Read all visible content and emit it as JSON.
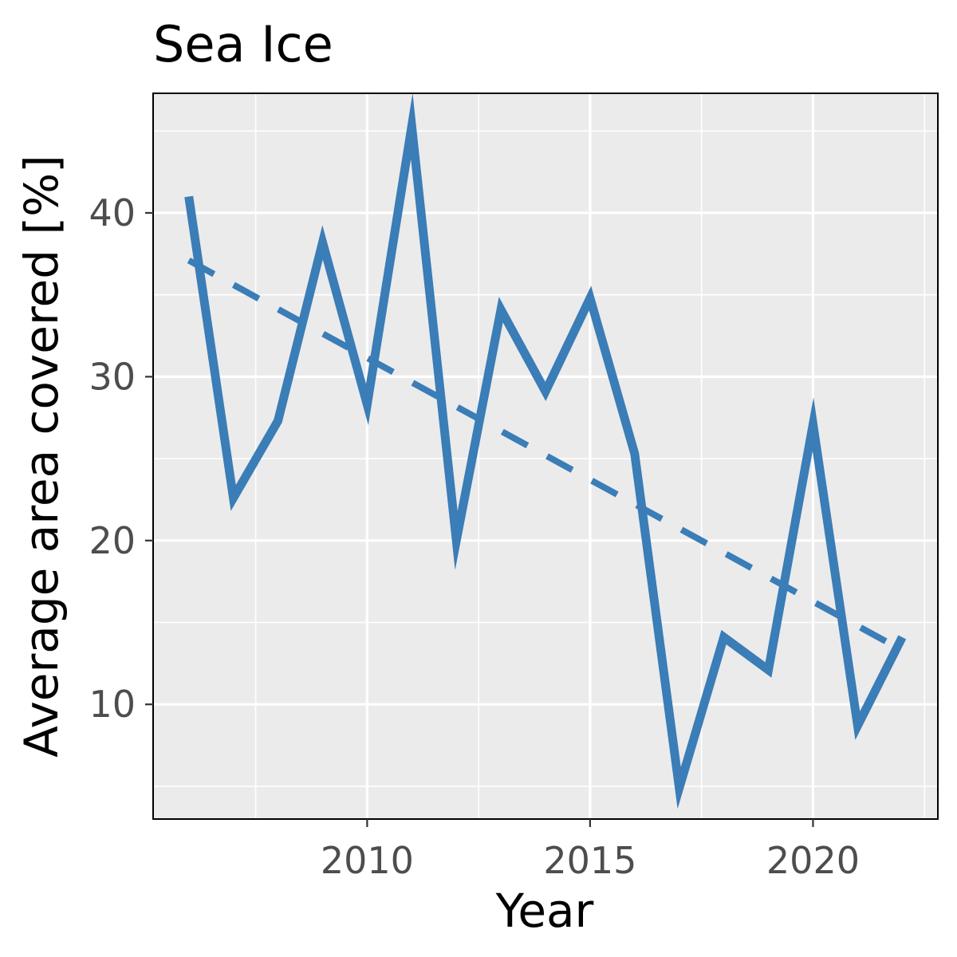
{
  "chart_data": {
    "type": "line",
    "title": "Sea Ice",
    "xlabel": "Year",
    "ylabel": "Average area covered [%]",
    "xlim": [
      2005.2,
      2022.8
    ],
    "ylim": [
      3.0,
      47.3
    ],
    "x_ticks": [
      {
        "value": 2010,
        "label": "2010"
      },
      {
        "value": 2015,
        "label": "2015"
      },
      {
        "value": 2020,
        "label": "2020"
      }
    ],
    "y_ticks": [
      {
        "value": 10,
        "label": "10"
      },
      {
        "value": 20,
        "label": "20"
      },
      {
        "value": 30,
        "label": "30"
      },
      {
        "value": 40,
        "label": "40"
      }
    ],
    "x_minor_ticks": [
      2007.5,
      2012.5,
      2017.5,
      2022.5
    ],
    "y_minor_ticks": [
      5,
      15,
      25,
      35,
      45
    ],
    "grid": true,
    "series": [
      {
        "style": "solid",
        "color": "#3A7DB7",
        "x": [
          2006,
          2007,
          2008,
          2009,
          2010,
          2011,
          2012,
          2013,
          2014,
          2015,
          2016,
          2017,
          2018,
          2019,
          2020,
          2021,
          2022
        ],
        "y": [
          41.0,
          22.6,
          27.3,
          38.2,
          28.3,
          45.3,
          20.0,
          34.1,
          29.1,
          34.8,
          25.3,
          4.9,
          14.1,
          12.1,
          27.1,
          8.7,
          14.1
        ]
      },
      {
        "style": "dashed",
        "color": "#3A7DB7",
        "x": [
          2006,
          2022
        ],
        "y": [
          37.1,
          13.3
        ]
      }
    ]
  },
  "colors": {
    "panel_background": "#EBEBEB",
    "grid_major": "#FFFFFF",
    "grid_minor": "#FFFFFF",
    "panel_border": "#000000",
    "tick_text": "#4D4D4D",
    "line": "#3A7DB7"
  }
}
